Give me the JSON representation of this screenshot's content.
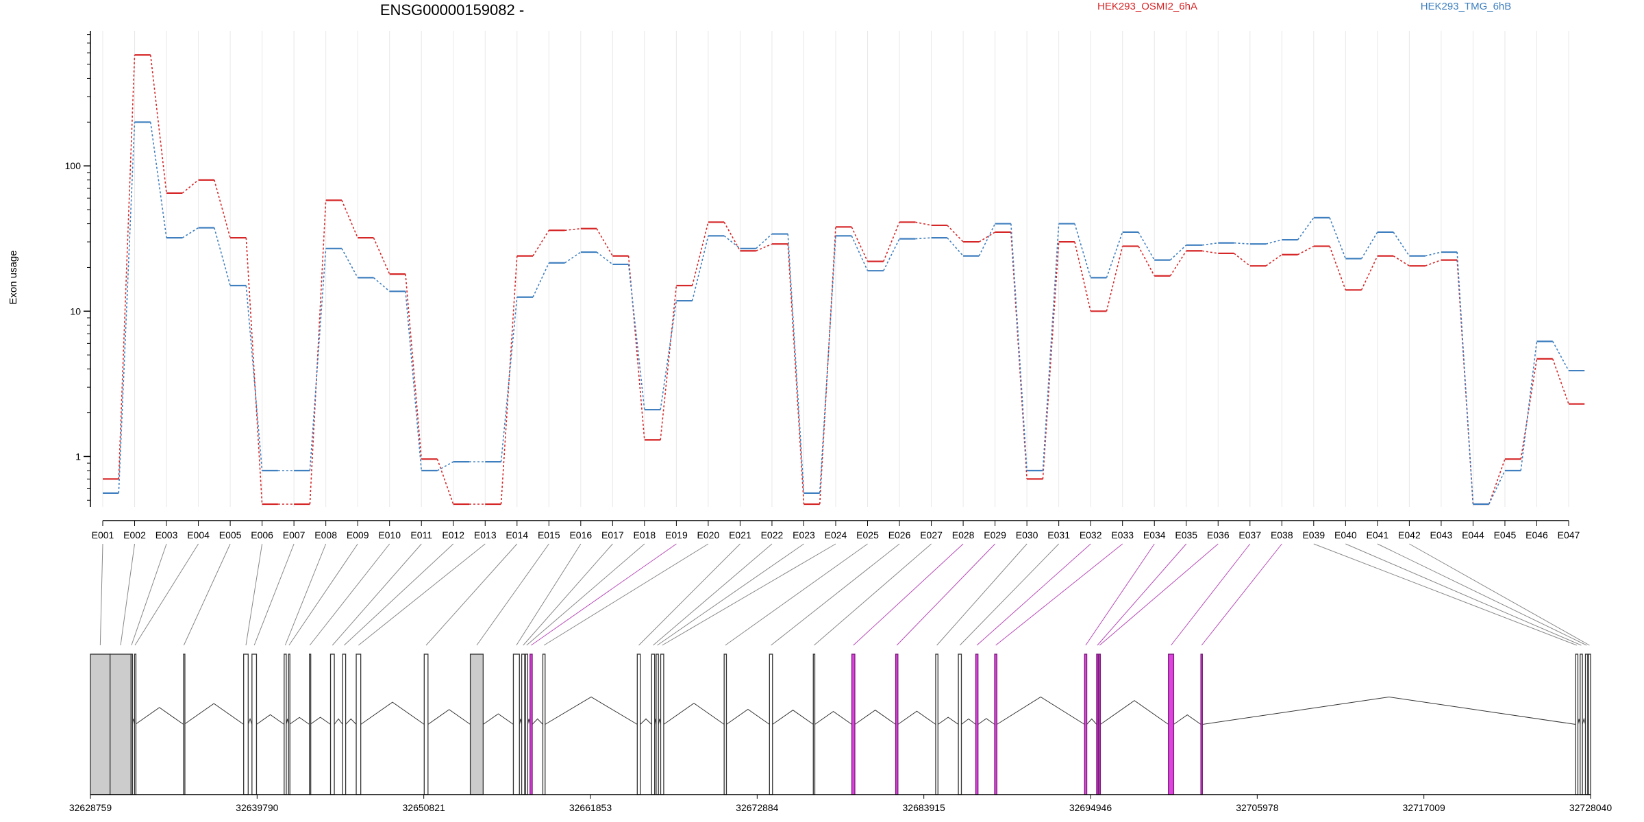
{
  "chart_data": {
    "type": "line",
    "title": "ENSG00000159082 -",
    "ylabel": "Exon usage",
    "yscale": "log",
    "ylim": [
      0.45,
      850
    ],
    "yticks": [
      {
        "value": 1,
        "label": "1"
      },
      {
        "value": 10,
        "label": "10"
      },
      {
        "value": 100,
        "label": "100"
      }
    ],
    "categories": [
      "E001",
      "E002",
      "E003",
      "E004",
      "E005",
      "E006",
      "E007",
      "E008",
      "E009",
      "E010",
      "E011",
      "E012",
      "E013",
      "E014",
      "E015",
      "E016",
      "E017",
      "E018",
      "E019",
      "E020",
      "E021",
      "E022",
      "E023",
      "E024",
      "E025",
      "E026",
      "E027",
      "E028",
      "E029",
      "E030",
      "E031",
      "E032",
      "E033",
      "E034",
      "E035",
      "E036",
      "E037",
      "E038",
      "E039",
      "E040",
      "E041",
      "E042",
      "E043",
      "E044",
      "E045",
      "E046",
      "E047"
    ],
    "series": [
      {
        "name": "HEK293_OSMI2_6hA",
        "color": "#d62728",
        "values": [
          0.7,
          580,
          65,
          80,
          32,
          0.47,
          0.47,
          58,
          32,
          18,
          0.96,
          0.47,
          0.47,
          24,
          36,
          37,
          24,
          1.3,
          15,
          41,
          26,
          29,
          0.47,
          38,
          22,
          41,
          39,
          30,
          35,
          0.7,
          30,
          10,
          28,
          17.5,
          26,
          25,
          20.5,
          24.5,
          28,
          14,
          24,
          20.5,
          22.5,
          0.47,
          0.96,
          4.7,
          2.3
        ]
      },
      {
        "name": "HEK293_TMG_6hB",
        "color": "#3f7fbf",
        "values": [
          0.56,
          200,
          32,
          37.5,
          15,
          0.8,
          0.8,
          27,
          17,
          13.7,
          0.8,
          0.92,
          0.92,
          12.5,
          21.5,
          25.5,
          21,
          2.1,
          11.8,
          33,
          27,
          34,
          0.56,
          33,
          19,
          31.5,
          32,
          24,
          40,
          0.8,
          40,
          17,
          35,
          22.5,
          28.5,
          29.5,
          29,
          31,
          44,
          23,
          35,
          24,
          25.5,
          0.47,
          0.8,
          6.2,
          3.9
        ]
      }
    ],
    "genomic_axis": {
      "ticks": [
        "32628759",
        "32639790",
        "32650821",
        "32661853",
        "32672884",
        "32683915",
        "32694946",
        "32705978",
        "32717009",
        "32728040"
      ]
    },
    "gene_model": {
      "exons": [
        {
          "id": "E001",
          "start": 32628759,
          "end": 32630060,
          "fill": "gray"
        },
        {
          "id": "E002",
          "start": 32630060,
          "end": 32631450,
          "fill": "gray"
        },
        {
          "id": "E003",
          "start": 32631450,
          "end": 32631500,
          "fill": "none"
        },
        {
          "id": "E004",
          "start": 32631680,
          "end": 32631730,
          "fill": "none"
        },
        {
          "id": "E005",
          "start": 32634920,
          "end": 32634960,
          "fill": "none"
        },
        {
          "id": "E006",
          "start": 32638900,
          "end": 32639200,
          "fill": "none"
        },
        {
          "id": "E007",
          "start": 32639450,
          "end": 32639750,
          "fill": "none"
        },
        {
          "id": "E008",
          "start": 32641580,
          "end": 32641720,
          "fill": "none"
        },
        {
          "id": "E009",
          "start": 32641870,
          "end": 32641930,
          "fill": "none"
        },
        {
          "id": "E010",
          "start": 32643250,
          "end": 32643300,
          "fill": "none"
        },
        {
          "id": "E011",
          "start": 32644650,
          "end": 32644900,
          "fill": "none"
        },
        {
          "id": "E012",
          "start": 32645450,
          "end": 32645650,
          "fill": "none"
        },
        {
          "id": "E013",
          "start": 32646350,
          "end": 32646650,
          "fill": "none"
        },
        {
          "id": "E014",
          "start": 32650850,
          "end": 32651100,
          "fill": "none"
        },
        {
          "id": "E015",
          "start": 32653900,
          "end": 32654750,
          "fill": "gray"
        },
        {
          "id": "E016",
          "start": 32656750,
          "end": 32657150,
          "fill": "none"
        },
        {
          "id": "E017",
          "start": 32657300,
          "end": 32657500,
          "fill": "none"
        },
        {
          "id": "E018",
          "start": 32657550,
          "end": 32657700,
          "fill": "none"
        },
        {
          "id": "E019",
          "start": 32657850,
          "end": 32658000,
          "fill": "magenta"
        },
        {
          "id": "E020",
          "start": 32658700,
          "end": 32658850,
          "fill": "none"
        },
        {
          "id": "E021",
          "start": 32664950,
          "end": 32665150,
          "fill": "none"
        },
        {
          "id": "E022",
          "start": 32665900,
          "end": 32666100,
          "fill": "none"
        },
        {
          "id": "E023",
          "start": 32666200,
          "end": 32666350,
          "fill": "none"
        },
        {
          "id": "E024",
          "start": 32666500,
          "end": 32666700,
          "fill": "none"
        },
        {
          "id": "E025",
          "start": 32670700,
          "end": 32670850,
          "fill": "none"
        },
        {
          "id": "E026",
          "start": 32673700,
          "end": 32673900,
          "fill": "none"
        },
        {
          "id": "E027",
          "start": 32676600,
          "end": 32676700,
          "fill": "none"
        },
        {
          "id": "E028",
          "start": 32679150,
          "end": 32679350,
          "fill": "magenta"
        },
        {
          "id": "E029",
          "start": 32682050,
          "end": 32682200,
          "fill": "magenta"
        },
        {
          "id": "E030",
          "start": 32684700,
          "end": 32684850,
          "fill": "none"
        },
        {
          "id": "E031",
          "start": 32686200,
          "end": 32686400,
          "fill": "none"
        },
        {
          "id": "E032",
          "start": 32687350,
          "end": 32687500,
          "fill": "magenta"
        },
        {
          "id": "E033",
          "start": 32688600,
          "end": 32688750,
          "fill": "magenta"
        },
        {
          "id": "E034",
          "start": 32694550,
          "end": 32694700,
          "fill": "magenta"
        },
        {
          "id": "E035",
          "start": 32695350,
          "end": 32695450,
          "fill": "magenta"
        },
        {
          "id": "E036",
          "start": 32695500,
          "end": 32695600,
          "fill": "magenta"
        },
        {
          "id": "E037",
          "start": 32700100,
          "end": 32700450,
          "fill": "magenta"
        },
        {
          "id": "E038",
          "start": 32702250,
          "end": 32702350,
          "fill": "magenta"
        },
        {
          "id": "E039",
          "start": 32727050,
          "end": 32727200,
          "fill": "none"
        },
        {
          "id": "E040",
          "start": 32727350,
          "end": 32727500,
          "fill": "none"
        },
        {
          "id": "E041",
          "start": 32727700,
          "end": 32727850,
          "fill": "none"
        },
        {
          "id": "E042",
          "start": 32727900,
          "end": 32728040,
          "fill": "none"
        }
      ]
    }
  }
}
